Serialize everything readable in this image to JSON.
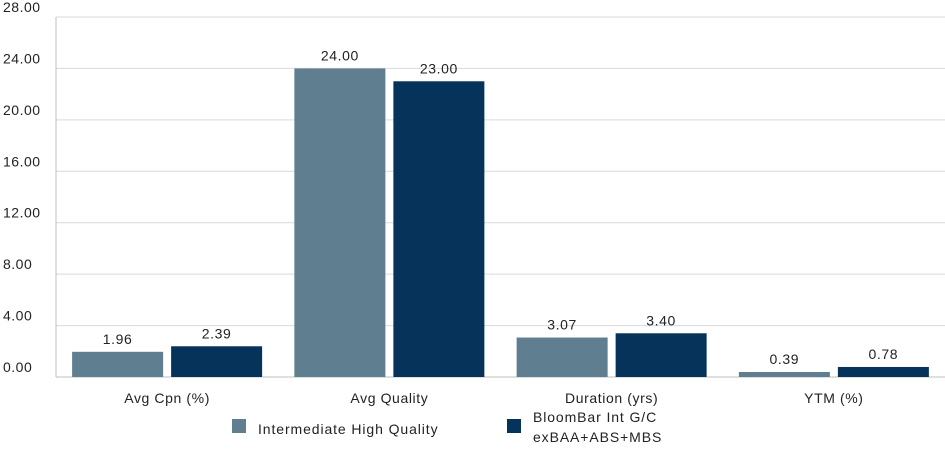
{
  "chart_data": {
    "type": "bar",
    "title": "",
    "xlabel": "",
    "ylabel": "",
    "categories": [
      "Avg Cpn (%)",
      "Avg Quality",
      "Duration (yrs)",
      "YTM (%)"
    ],
    "ylim": [
      0,
      28
    ],
    "yticks": [
      "0.00",
      "4.00",
      "8.00",
      "12.00",
      "16.00",
      "20.00",
      "24.00",
      "28.00"
    ],
    "grid": true,
    "legend_position": "bottom",
    "series": [
      {
        "name": "Intermediate High Quality",
        "color": "#5f7f91",
        "values": [
          1.96,
          24.0,
          3.07,
          0.39
        ],
        "labels": [
          "1.96",
          "24.00",
          "3.07",
          "0.39"
        ]
      },
      {
        "name": "BloomBar Int G/C\nexBAA+ABS+MBS",
        "color": "#06335a",
        "values": [
          2.39,
          23.0,
          3.4,
          0.78
        ],
        "labels": [
          "2.39",
          "23.00",
          "3.40",
          "0.78"
        ]
      }
    ]
  }
}
